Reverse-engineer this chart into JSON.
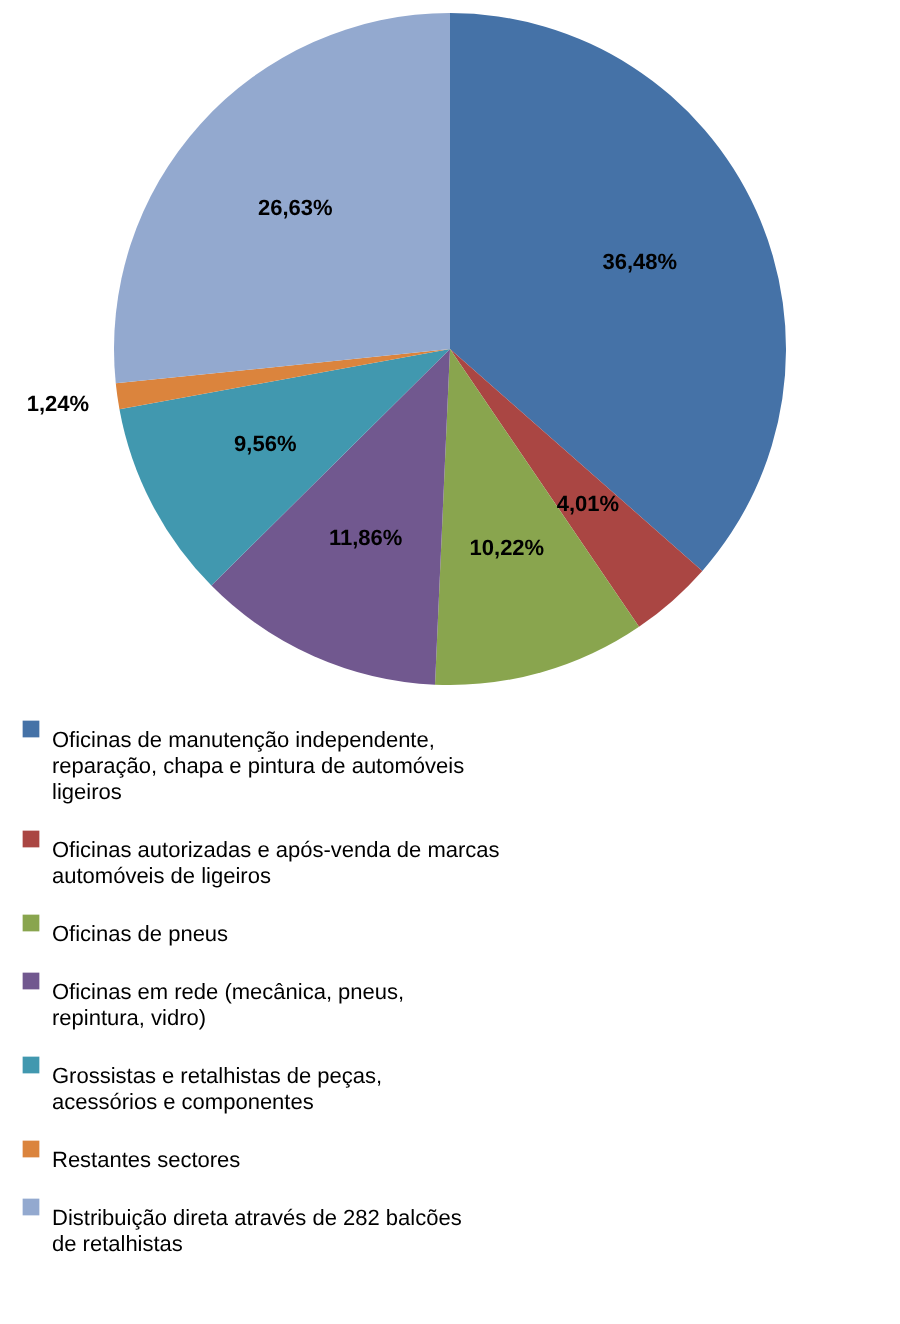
{
  "chart_data": {
    "type": "pie",
    "categories": [
      "Oficinas de manutenção independente, reparação, chapa e pintura de automóveis ligeiros",
      "Oficinas autorizadas e após-venda de marcas automóveis de ligeiros",
      "Oficinas de pneus",
      "Oficinas em rede (mecânica, pneus, repintura, vidro)",
      "Grossistas e retalhistas de peças, acessórios e componentes",
      "Restantes sectores",
      "Distribuição direta através de 282 balcões de retalhistas"
    ],
    "values": [
      36.48,
      4.01,
      10.22,
      11.86,
      9.56,
      1.24,
      26.63
    ],
    "value_labels": [
      "36,48%",
      "4,01%",
      "10,22%",
      "11,86%",
      "9,56%",
      "1,24%",
      "26,63%"
    ],
    "colors": [
      "#4572a7",
      "#aa4643",
      "#89a54e",
      "#71588f",
      "#4198af",
      "#db843d",
      "#93a9cf"
    ],
    "legend": "bottom"
  }
}
